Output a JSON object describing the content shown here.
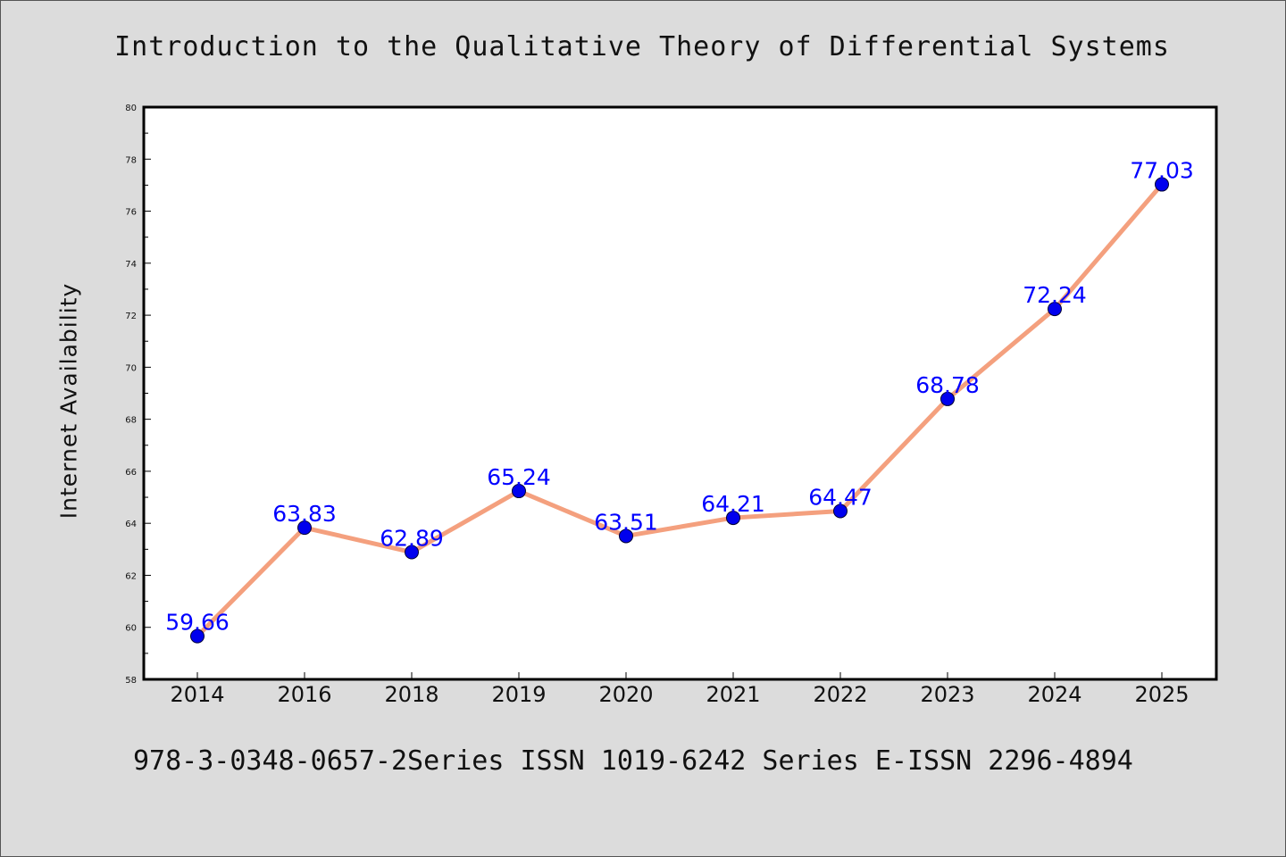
{
  "title": "Introduction to the Qualitative Theory of Differential Systems",
  "footer": "978-3-0348-0657-2Series ISSN 1019-6242 Series E-ISSN 2296-4894",
  "colors": {
    "background": "#dcdcdc",
    "plot_background": "#ffffff",
    "line": "#f4a07e",
    "marker": "#0000ee",
    "data_label": "#0000ff"
  },
  "chart_data": {
    "type": "line",
    "categories": [
      "2014",
      "2016",
      "2018",
      "2019",
      "2020",
      "2021",
      "2022",
      "2023",
      "2024",
      "2025"
    ],
    "values": [
      59.66,
      63.83,
      62.89,
      65.24,
      63.51,
      64.21,
      64.47,
      68.78,
      72.24,
      77.03
    ],
    "data_labels": [
      "59.66",
      "63.83",
      "62.89",
      "65.24",
      "63.51",
      "64.21",
      "64.47",
      "68.78",
      "72.24",
      "77.03"
    ],
    "xlabel": "",
    "ylabel": "Internet Availability",
    "ylim": [
      58,
      80
    ],
    "yticks": [
      "58",
      "60",
      "62",
      "64",
      "66",
      "68",
      "70",
      "72",
      "74",
      "76",
      "78",
      "80"
    ],
    "grid": false,
    "legend": "none"
  }
}
